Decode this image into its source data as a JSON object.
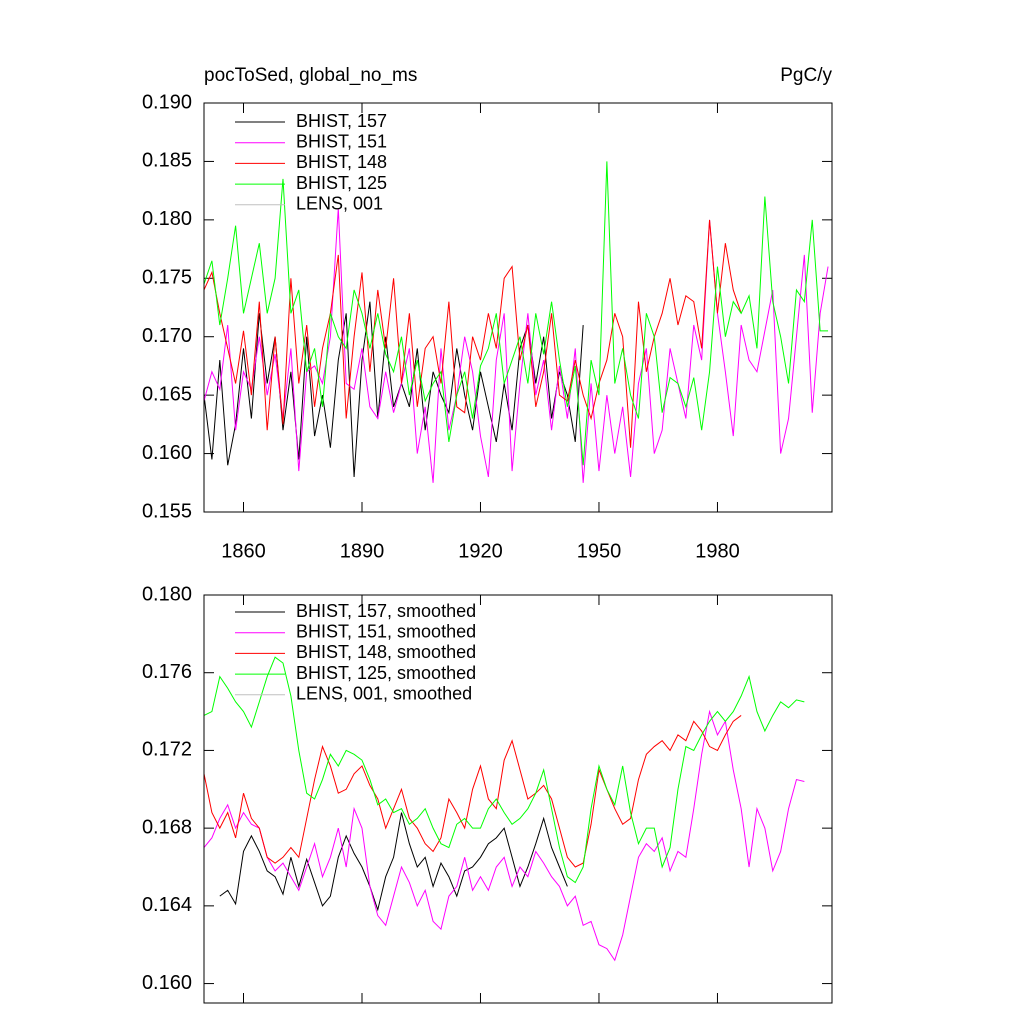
{
  "chart_data": [
    {
      "type": "line",
      "title": "pocToSed, global_no_ms",
      "units": "PgC/y",
      "x": [
        1850,
        1852,
        1854,
        1856,
        1858,
        1860,
        1862,
        1864,
        1866,
        1868,
        1870,
        1872,
        1874,
        1876,
        1878,
        1880,
        1882,
        1884,
        1886,
        1888,
        1890,
        1892,
        1894,
        1896,
        1898,
        1900,
        1902,
        1904,
        1906,
        1908,
        1910,
        1912,
        1914,
        1916,
        1918,
        1920,
        1922,
        1924,
        1926,
        1928,
        1930,
        1932,
        1934,
        1936,
        1938,
        1940,
        1942,
        1944,
        1946,
        1948,
        1950,
        1952,
        1954,
        1956,
        1958,
        1960,
        1962,
        1964,
        1966,
        1968,
        1970,
        1972,
        1974,
        1976,
        1978,
        1980,
        1982,
        1984,
        1986,
        1988,
        1990,
        1992,
        1994,
        1996,
        1998,
        2000,
        2002,
        2004,
        2006,
        2008
      ],
      "xlim": [
        1850,
        2009
      ],
      "xticks": [
        1860,
        1890,
        1920,
        1950,
        1980
      ],
      "xtick_labels": true,
      "ylim": [
        0.155,
        0.19
      ],
      "yticks": [
        {
          "value": 0.155,
          "label": "0.155"
        },
        {
          "value": 0.16,
          "label": "0.160"
        },
        0.165,
        {
          "value": 0.17,
          "label": "0.170"
        },
        0.175,
        {
          "value": 0.18,
          "label": "0.180"
        },
        0.185,
        {
          "value": 0.19,
          "label": "0.190"
        }
      ],
      "series": [
        {
          "name": "BHIST, 157",
          "color": "#000000",
          "values": [
            0.165,
            0.1595,
            0.168,
            0.159,
            0.1625,
            0.169,
            0.163,
            0.172,
            0.166,
            0.17,
            0.162,
            0.167,
            0.1595,
            0.17,
            0.1615,
            0.165,
            0.1605,
            0.168,
            0.172,
            0.158,
            0.168,
            0.173,
            0.163,
            0.17,
            0.164,
            0.166,
            0.164,
            0.169,
            0.162,
            0.167,
            0.165,
            0.1635,
            0.169,
            0.165,
            0.162,
            0.167,
            0.164,
            0.161,
            0.166,
            0.162,
            0.169,
            0.171,
            0.166,
            0.17,
            0.163,
            0.167,
            0.165,
            0.161,
            0.171,
            null,
            null,
            null,
            null,
            null,
            null,
            null,
            null,
            null,
            null,
            null,
            null,
            null,
            null,
            null,
            null,
            null,
            null,
            null,
            null,
            null,
            null,
            null,
            null,
            null,
            null,
            null,
            null,
            null,
            null,
            null
          ]
        },
        {
          "name": "BHIST, 151",
          "color": "#ff00ff",
          "values": [
            0.1645,
            0.167,
            0.1655,
            0.171,
            0.162,
            0.167,
            0.1655,
            0.17,
            0.165,
            0.1685,
            0.163,
            0.169,
            0.1585,
            0.167,
            0.1675,
            0.166,
            0.17,
            0.181,
            0.166,
            0.1655,
            0.169,
            0.164,
            0.163,
            0.167,
            0.1635,
            0.166,
            0.169,
            0.16,
            0.164,
            0.1575,
            0.169,
            0.162,
            0.165,
            0.17,
            0.167,
            0.1615,
            0.158,
            0.168,
            0.172,
            0.1585,
            0.166,
            0.172,
            0.165,
            0.168,
            0.162,
            0.1675,
            0.163,
            0.169,
            0.1575,
            0.166,
            0.1585,
            0.165,
            0.16,
            0.164,
            0.158,
            0.166,
            0.169,
            0.16,
            0.162,
            0.169,
            0.166,
            0.163,
            0.171,
            0.168,
            0.18,
            0.172,
            0.167,
            0.1615,
            0.171,
            0.168,
            0.167,
            0.1705,
            0.174,
            0.16,
            0.163,
            0.17,
            0.177,
            0.1635,
            0.172,
            0.176
          ]
        },
        {
          "name": "BHIST, 148",
          "color": "#ff0000",
          "values": [
            0.174,
            0.1755,
            0.172,
            0.169,
            0.166,
            0.1705,
            0.165,
            0.173,
            0.162,
            0.17,
            0.1625,
            0.175,
            0.166,
            0.171,
            0.164,
            0.169,
            0.172,
            0.177,
            0.163,
            0.17,
            0.1755,
            0.167,
            0.174,
            0.169,
            0.175,
            0.166,
            0.172,
            0.164,
            0.169,
            0.17,
            0.166,
            0.173,
            0.164,
            0.1635,
            0.17,
            0.168,
            0.172,
            0.169,
            0.175,
            0.176,
            0.168,
            0.171,
            0.164,
            0.167,
            0.172,
            0.165,
            0.1645,
            0.168,
            0.165,
            0.163,
            0.166,
            0.168,
            0.172,
            0.17,
            0.1605,
            0.173,
            0.167,
            0.17,
            0.172,
            0.175,
            0.171,
            0.1735,
            0.173,
            0.169,
            0.18,
            0.172,
            0.178,
            0.174,
            0.172,
            null,
            null,
            null,
            null,
            null,
            null,
            null,
            null,
            null,
            null,
            null
          ]
        },
        {
          "name": "BHIST, 125",
          "color": "#00ff00",
          "values": [
            0.1745,
            0.1765,
            0.171,
            0.175,
            0.1795,
            0.172,
            0.175,
            0.178,
            0.172,
            0.175,
            0.1835,
            0.172,
            0.174,
            0.167,
            0.169,
            0.164,
            0.172,
            0.17,
            0.169,
            0.174,
            0.172,
            0.169,
            0.172,
            0.1685,
            0.167,
            0.17,
            0.165,
            0.168,
            0.1645,
            0.166,
            0.167,
            0.161,
            0.165,
            0.167,
            0.163,
            0.1675,
            0.169,
            0.172,
            0.166,
            0.168,
            0.17,
            0.166,
            0.172,
            0.1685,
            0.173,
            0.168,
            0.164,
            0.1675,
            0.159,
            0.168,
            0.165,
            0.185,
            0.166,
            0.169,
            0.165,
            0.163,
            0.172,
            0.17,
            0.1635,
            0.1665,
            0.166,
            0.164,
            0.1665,
            0.162,
            0.167,
            0.176,
            0.17,
            0.173,
            0.172,
            0.1735,
            0.169,
            0.182,
            0.173,
            0.17,
            0.166,
            0.174,
            0.173,
            0.18,
            0.1705,
            0.1705
          ]
        },
        {
          "name": "LENS, 001",
          "color": "#c0c0c0",
          "values": [
            null,
            null,
            null,
            null,
            null,
            null,
            null,
            null,
            null,
            null,
            null,
            null,
            null,
            null,
            null,
            null,
            null,
            null,
            null,
            null,
            null,
            null,
            null,
            null,
            null,
            null,
            null,
            null,
            null,
            null,
            null,
            null,
            null,
            null,
            null,
            null,
            null,
            null,
            null,
            null,
            null,
            null,
            null,
            null,
            null,
            null,
            null,
            null,
            null,
            null,
            null,
            null,
            null,
            null,
            null,
            null,
            null,
            null,
            null,
            null,
            null,
            null,
            null,
            null,
            null,
            null,
            null,
            null,
            null,
            null,
            null,
            null,
            null,
            null,
            null,
            null,
            null,
            null,
            null,
            null
          ]
        }
      ]
    },
    {
      "type": "line",
      "x": [
        1850,
        1852,
        1854,
        1856,
        1858,
        1860,
        1862,
        1864,
        1866,
        1868,
        1870,
        1872,
        1874,
        1876,
        1878,
        1880,
        1882,
        1884,
        1886,
        1888,
        1890,
        1892,
        1894,
        1896,
        1898,
        1900,
        1902,
        1904,
        1906,
        1908,
        1910,
        1912,
        1914,
        1916,
        1918,
        1920,
        1922,
        1924,
        1926,
        1928,
        1930,
        1932,
        1934,
        1936,
        1938,
        1940,
        1942,
        1944,
        1946,
        1948,
        1950,
        1952,
        1954,
        1956,
        1958,
        1960,
        1962,
        1964,
        1966,
        1968,
        1970,
        1972,
        1974,
        1976,
        1978,
        1980,
        1982,
        1984,
        1986,
        1988,
        1990,
        1992,
        1994,
        1996,
        1998,
        2000,
        2002,
        2004,
        2006,
        2008
      ],
      "xlim": [
        1850,
        2009
      ],
      "xticks": [
        1860,
        1890,
        1920,
        1950,
        1980
      ],
      "xtick_labels": false,
      "ylim": [
        0.159,
        0.18
      ],
      "yticks": [
        {
          "value": 0.16,
          "label": "0.160"
        },
        0.164,
        0.168,
        0.172,
        0.176,
        {
          "value": 0.18,
          "label": "0.180"
        }
      ],
      "series": [
        {
          "name": "BHIST, 157, smoothed",
          "color": "#000000",
          "values": [
            null,
            null,
            0.1645,
            0.1648,
            0.1641,
            0.1668,
            0.1676,
            0.1668,
            0.1658,
            0.1655,
            0.1646,
            0.1665,
            0.165,
            0.1664,
            0.1652,
            0.164,
            0.1645,
            0.1665,
            0.1676,
            0.1667,
            0.166,
            0.165,
            0.1638,
            0.1655,
            0.1665,
            0.1688,
            0.1672,
            0.166,
            0.1665,
            0.165,
            0.1662,
            0.1655,
            0.1645,
            0.1658,
            0.166,
            0.1665,
            0.1672,
            0.1675,
            0.168,
            0.1665,
            0.165,
            0.166,
            0.1672,
            0.1685,
            0.167,
            0.166,
            0.165,
            null,
            null,
            null,
            null,
            null,
            null,
            null,
            null,
            null,
            null,
            null,
            null,
            null,
            null,
            null,
            null,
            null,
            null,
            null,
            null,
            null,
            null,
            null,
            null,
            null,
            null,
            null,
            null,
            null,
            null,
            null,
            null,
            null
          ]
        },
        {
          "name": "BHIST, 151, smoothed",
          "color": "#ff00ff",
          "values": [
            0.167,
            0.1675,
            0.1685,
            0.1692,
            0.168,
            0.1688,
            0.1682,
            0.168,
            0.1665,
            0.1658,
            0.1662,
            0.1655,
            0.1648,
            0.166,
            0.1672,
            0.1655,
            0.1665,
            0.168,
            0.166,
            0.169,
            0.168,
            0.165,
            0.1635,
            0.163,
            0.1645,
            0.166,
            0.1652,
            0.164,
            0.1648,
            0.1632,
            0.1628,
            0.1645,
            0.165,
            0.1665,
            0.1648,
            0.1655,
            0.1648,
            0.166,
            0.1665,
            0.165,
            0.166,
            0.1655,
            0.1668,
            0.1662,
            0.1655,
            0.165,
            0.164,
            0.1645,
            0.163,
            0.1632,
            0.162,
            0.1618,
            0.1612,
            0.1625,
            0.1645,
            0.1665,
            0.1672,
            0.1668,
            0.1675,
            0.1658,
            0.1668,
            0.1665,
            0.169,
            0.1718,
            0.174,
            0.1728,
            0.1735,
            0.171,
            0.169,
            0.166,
            0.169,
            0.168,
            0.1658,
            0.1668,
            0.169,
            0.1705,
            0.1704,
            null,
            null,
            null
          ]
        },
        {
          "name": "BHIST, 148, smoothed",
          "color": "#ff0000",
          "values": [
            0.1708,
            0.1688,
            0.168,
            0.1688,
            0.1675,
            0.1698,
            0.1685,
            0.168,
            0.1665,
            0.1662,
            0.1665,
            0.167,
            0.1665,
            0.1685,
            0.1705,
            0.1722,
            0.1712,
            0.1698,
            0.17,
            0.1708,
            0.1712,
            0.1702,
            0.1695,
            0.168,
            0.169,
            0.17,
            0.1685,
            0.168,
            0.1672,
            0.1668,
            0.1675,
            0.1695,
            0.1688,
            0.168,
            0.17,
            0.1712,
            0.1695,
            0.169,
            0.1715,
            0.1725,
            0.171,
            0.1695,
            0.1698,
            0.1702,
            0.1695,
            0.168,
            0.1665,
            0.166,
            0.1662,
            0.1682,
            0.171,
            0.17,
            0.169,
            0.1682,
            0.1685,
            0.1705,
            0.1718,
            0.1722,
            0.1725,
            0.172,
            0.1728,
            0.1725,
            0.1735,
            0.173,
            0.1722,
            0.172,
            0.1728,
            0.1735,
            0.1738,
            null,
            null,
            null,
            null,
            null,
            null,
            null,
            null,
            null,
            null,
            null
          ]
        },
        {
          "name": "BHIST, 125, smoothed",
          "color": "#00ff00",
          "values": [
            0.1738,
            0.174,
            0.1758,
            0.1752,
            0.1745,
            0.174,
            0.1732,
            0.1745,
            0.1758,
            0.1768,
            0.1765,
            0.1748,
            0.172,
            0.1698,
            0.1695,
            0.1705,
            0.1718,
            0.1712,
            0.172,
            0.1718,
            0.1715,
            0.1705,
            0.1692,
            0.1695,
            0.1688,
            0.169,
            0.1682,
            0.1685,
            0.169,
            0.168,
            0.1672,
            0.167,
            0.1682,
            0.1685,
            0.168,
            0.168,
            0.169,
            0.1695,
            0.1688,
            0.1682,
            0.1685,
            0.169,
            0.1698,
            0.171,
            0.169,
            0.167,
            0.1655,
            0.1652,
            0.166,
            0.169,
            0.1712,
            0.17,
            0.1692,
            0.1712,
            0.1688,
            0.1672,
            0.168,
            0.168,
            0.166,
            0.167,
            0.17,
            0.1722,
            0.172,
            0.1728,
            0.1735,
            0.174,
            0.1735,
            0.174,
            0.1748,
            0.1758,
            0.174,
            0.173,
            0.1738,
            0.1745,
            0.1742,
            0.1746,
            0.1745,
            null,
            null,
            null
          ]
        },
        {
          "name": "LENS, 001, smoothed",
          "color": "#c0c0c0",
          "values": [
            null,
            null,
            null,
            null,
            null,
            null,
            null,
            null,
            null,
            null,
            null,
            null,
            null,
            null,
            null,
            null,
            null,
            null,
            null,
            null,
            null,
            null,
            null,
            null,
            null,
            null,
            null,
            null,
            null,
            null,
            null,
            null,
            null,
            null,
            null,
            null,
            null,
            null,
            null,
            null,
            null,
            null,
            null,
            null,
            null,
            null,
            null,
            null,
            null,
            null,
            null,
            null,
            null,
            null,
            null,
            null,
            null,
            null,
            null,
            null,
            null,
            null,
            null,
            null,
            null,
            null,
            null,
            null,
            null,
            null,
            null,
            null,
            null,
            null,
            null,
            null,
            null,
            null,
            null,
            null
          ]
        }
      ]
    }
  ]
}
